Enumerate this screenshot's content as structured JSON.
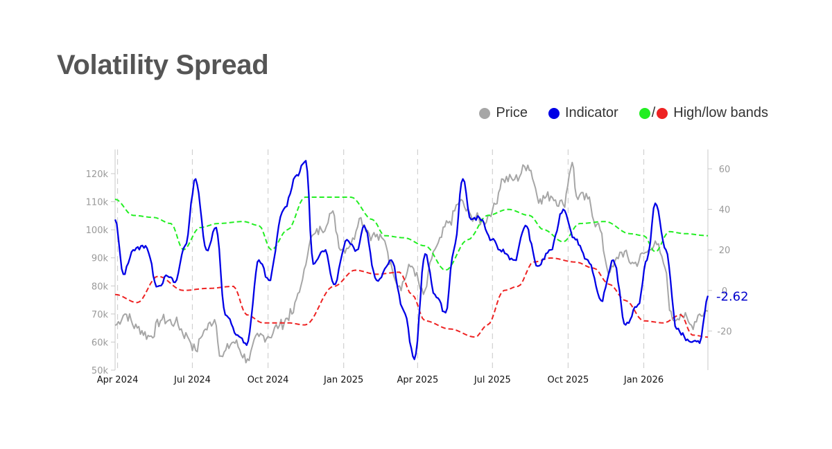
{
  "title": "Volatility Spread",
  "legend": {
    "price": "Price",
    "indicator": "Indicator",
    "bands_slash": "/",
    "bands": "High/low bands"
  },
  "colors": {
    "price": "#a6a6a6",
    "indicator": "#0000e6",
    "high_band": "#22ee22",
    "low_band": "#ee2222",
    "axis_text": "#999999",
    "label": "#0000cc"
  },
  "chart_data": {
    "type": "line",
    "x_labels": [
      "Apr 2024",
      "Jul 2024",
      "Oct 2024",
      "Jan 2025",
      "Apr 2025",
      "Jul 2025",
      "Oct 2025",
      "Jan 2026"
    ],
    "x_range": [
      "2024-03-29",
      "2026-03-20"
    ],
    "left_axis": {
      "ticks": [
        "50k",
        "60k",
        "70k",
        "80k",
        "90k",
        "100k",
        "110k",
        "120k"
      ],
      "range": [
        50000,
        120000
      ]
    },
    "right_axis": {
      "ticks": [
        "-20",
        "0",
        "20",
        "40",
        "60"
      ],
      "range": [
        -40,
        60
      ]
    },
    "last_value_label": "-2.62",
    "grid": "vertical dashed at month labels",
    "series": [
      {
        "name": "Price",
        "axis": "left",
        "points": [
          [
            "2024-03-29",
            66000
          ],
          [
            "2024-04-10",
            70000
          ],
          [
            "2024-04-25",
            65000
          ],
          [
            "2024-05-10",
            62000
          ],
          [
            "2024-05-25",
            68000
          ],
          [
            "2024-06-10",
            67000
          ],
          [
            "2024-06-25",
            62000
          ],
          [
            "2024-07-05",
            57000
          ],
          [
            "2024-07-15",
            64000
          ],
          [
            "2024-07-28",
            68000
          ],
          [
            "2024-08-05",
            55000
          ],
          [
            "2024-08-20",
            60000
          ],
          [
            "2024-09-06",
            54000
          ],
          [
            "2024-09-20",
            62000
          ],
          [
            "2024-10-01",
            62000
          ],
          [
            "2024-10-15",
            66000
          ],
          [
            "2024-10-30",
            70000
          ],
          [
            "2024-11-10",
            80000
          ],
          [
            "2024-11-22",
            97000
          ],
          [
            "2024-12-05",
            100000
          ],
          [
            "2024-12-17",
            106000
          ],
          [
            "2024-12-30",
            93000
          ],
          [
            "2025-01-10",
            95000
          ],
          [
            "2025-01-20",
            104000
          ],
          [
            "2025-02-05",
            98000
          ],
          [
            "2025-02-20",
            96000
          ],
          [
            "2025-03-01",
            86000
          ],
          [
            "2025-03-10",
            80000
          ],
          [
            "2025-03-25",
            87000
          ],
          [
            "2025-04-08",
            77000
          ],
          [
            "2025-04-22",
            93000
          ],
          [
            "2025-05-10",
            103000
          ],
          [
            "2025-05-22",
            110000
          ],
          [
            "2025-06-05",
            105000
          ],
          [
            "2025-06-20",
            103000
          ],
          [
            "2025-07-01",
            107000
          ],
          [
            "2025-07-14",
            118000
          ],
          [
            "2025-07-28",
            118000
          ],
          [
            "2025-08-13",
            123000
          ],
          [
            "2025-08-28",
            111000
          ],
          [
            "2025-09-10",
            112000
          ],
          [
            "2025-09-25",
            109000
          ],
          [
            "2025-10-06",
            124000
          ],
          [
            "2025-10-11",
            112000
          ],
          [
            "2025-10-25",
            111000
          ],
          [
            "2025-11-05",
            102000
          ],
          [
            "2025-11-21",
            85000
          ],
          [
            "2025-12-05",
            92000
          ],
          [
            "2025-12-20",
            88000
          ],
          [
            "2026-01-05",
            92000
          ],
          [
            "2026-01-15",
            96000
          ],
          [
            "2026-01-25",
            88000
          ],
          [
            "2026-02-05",
            68000
          ],
          [
            "2026-02-15",
            70000
          ],
          [
            "2026-02-28",
            66000
          ],
          [
            "2026-03-10",
            70000
          ],
          [
            "2026-03-20",
            71000
          ]
        ]
      },
      {
        "name": "Indicator",
        "axis": "right",
        "points": [
          [
            "2024-03-29",
            35
          ],
          [
            "2024-04-08",
            8
          ],
          [
            "2024-04-20",
            20
          ],
          [
            "2024-05-05",
            22
          ],
          [
            "2024-05-20",
            2
          ],
          [
            "2024-06-01",
            7
          ],
          [
            "2024-06-10",
            4
          ],
          [
            "2024-06-22",
            22
          ],
          [
            "2024-07-05",
            55
          ],
          [
            "2024-07-18",
            20
          ],
          [
            "2024-07-30",
            31
          ],
          [
            "2024-08-10",
            -12
          ],
          [
            "2024-08-25",
            -22
          ],
          [
            "2024-09-05",
            -27
          ],
          [
            "2024-09-20",
            15
          ],
          [
            "2024-10-02",
            5
          ],
          [
            "2024-10-20",
            40
          ],
          [
            "2024-11-05",
            57
          ],
          [
            "2024-11-16",
            64
          ],
          [
            "2024-11-25",
            13
          ],
          [
            "2024-12-10",
            20
          ],
          [
            "2024-12-20",
            3
          ],
          [
            "2025-01-05",
            25
          ],
          [
            "2025-01-17",
            20
          ],
          [
            "2025-01-26",
            32
          ],
          [
            "2025-02-10",
            5
          ],
          [
            "2025-02-28",
            15
          ],
          [
            "2025-03-15",
            -10
          ],
          [
            "2025-03-28",
            -34
          ],
          [
            "2025-04-10",
            18
          ],
          [
            "2025-04-22",
            -2
          ],
          [
            "2025-05-05",
            -11
          ],
          [
            "2025-05-15",
            20
          ],
          [
            "2025-05-26",
            55
          ],
          [
            "2025-06-05",
            35
          ],
          [
            "2025-06-15",
            36
          ],
          [
            "2025-06-30",
            25
          ],
          [
            "2025-07-10",
            20
          ],
          [
            "2025-07-28",
            15
          ],
          [
            "2025-08-10",
            32
          ],
          [
            "2025-08-25",
            12
          ],
          [
            "2025-09-10",
            20
          ],
          [
            "2025-09-25",
            40
          ],
          [
            "2025-10-10",
            25
          ],
          [
            "2025-10-25",
            15
          ],
          [
            "2025-11-10",
            -5
          ],
          [
            "2025-11-25",
            15
          ],
          [
            "2025-12-10",
            -17
          ],
          [
            "2025-12-25",
            -7
          ],
          [
            "2026-01-05",
            15
          ],
          [
            "2026-01-15",
            43
          ],
          [
            "2026-01-28",
            20
          ],
          [
            "2026-02-10",
            -19
          ],
          [
            "2026-02-25",
            -25
          ],
          [
            "2026-03-10",
            -26
          ],
          [
            "2026-03-20",
            -2.62
          ]
        ]
      },
      {
        "name": "High band",
        "axis": "right",
        "points": [
          [
            "2024-03-29",
            45
          ],
          [
            "2024-04-20",
            37
          ],
          [
            "2024-05-15",
            36
          ],
          [
            "2024-06-05",
            33
          ],
          [
            "2024-06-20",
            20
          ],
          [
            "2024-07-10",
            31
          ],
          [
            "2024-08-01",
            33
          ],
          [
            "2024-09-01",
            34
          ],
          [
            "2024-09-20",
            32
          ],
          [
            "2024-10-05",
            20
          ],
          [
            "2024-10-25",
            30
          ],
          [
            "2024-11-15",
            46
          ],
          [
            "2024-12-15",
            46
          ],
          [
            "2025-01-10",
            46
          ],
          [
            "2025-02-05",
            35
          ],
          [
            "2025-02-20",
            27
          ],
          [
            "2025-03-15",
            26
          ],
          [
            "2025-04-10",
            22
          ],
          [
            "2025-05-05",
            10
          ],
          [
            "2025-06-01",
            25
          ],
          [
            "2025-06-25",
            37
          ],
          [
            "2025-07-20",
            40
          ],
          [
            "2025-08-15",
            37
          ],
          [
            "2025-09-01",
            30
          ],
          [
            "2025-09-25",
            24
          ],
          [
            "2025-10-15",
            33
          ],
          [
            "2025-11-15",
            34
          ],
          [
            "2025-12-15",
            28
          ],
          [
            "2026-01-01",
            27
          ],
          [
            "2026-01-15",
            19
          ],
          [
            "2026-02-01",
            29
          ],
          [
            "2026-02-20",
            28
          ],
          [
            "2026-03-20",
            27
          ]
        ]
      },
      {
        "name": "Low band",
        "axis": "right",
        "points": [
          [
            "2024-03-29",
            -2
          ],
          [
            "2024-04-25",
            -6
          ],
          [
            "2024-05-20",
            7
          ],
          [
            "2024-06-20",
            0
          ],
          [
            "2024-07-20",
            1
          ],
          [
            "2024-08-20",
            2
          ],
          [
            "2024-09-05",
            -12
          ],
          [
            "2024-09-25",
            -16
          ],
          [
            "2024-10-25",
            -16
          ],
          [
            "2024-11-15",
            -17
          ],
          [
            "2024-12-20",
            2
          ],
          [
            "2025-01-15",
            10
          ],
          [
            "2025-02-10",
            8
          ],
          [
            "2025-03-10",
            9
          ],
          [
            "2025-03-25",
            -2
          ],
          [
            "2025-04-10",
            -15
          ],
          [
            "2025-05-10",
            -19
          ],
          [
            "2025-06-10",
            -23
          ],
          [
            "2025-06-25",
            -17
          ],
          [
            "2025-07-15",
            0
          ],
          [
            "2025-08-01",
            2
          ],
          [
            "2025-08-20",
            14
          ],
          [
            "2025-09-10",
            16
          ],
          [
            "2025-10-10",
            14
          ],
          [
            "2025-11-01",
            11
          ],
          [
            "2025-11-20",
            3
          ],
          [
            "2025-12-10",
            -5
          ],
          [
            "2026-01-01",
            -15
          ],
          [
            "2026-01-25",
            -16
          ],
          [
            "2026-02-15",
            -12
          ],
          [
            "2026-03-01",
            -22
          ],
          [
            "2026-03-20",
            -23
          ]
        ]
      }
    ]
  }
}
